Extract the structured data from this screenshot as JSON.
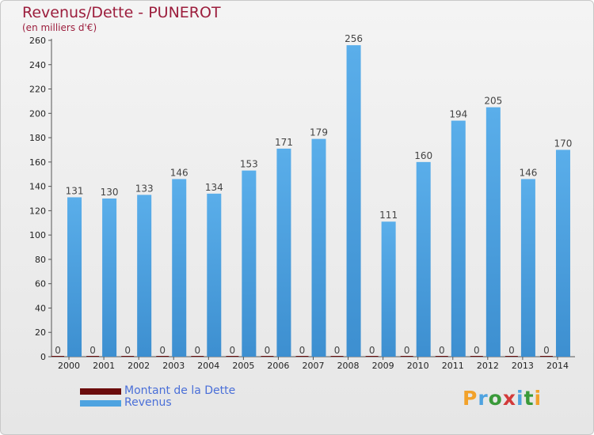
{
  "chart_data": {
    "type": "bar",
    "title": "Revenus/Dette - PUNEROT",
    "subtitle": "(en milliers d'€)",
    "categories": [
      "2000",
      "2001",
      "2002",
      "2003",
      "2004",
      "2005",
      "2006",
      "2007",
      "2008",
      "2009",
      "2010",
      "2011",
      "2012",
      "2013",
      "2014"
    ],
    "series": [
      {
        "name": "Montant de la Dette",
        "color": "#6b0c0c",
        "values": [
          0,
          0,
          0,
          0,
          0,
          0,
          0,
          0,
          0,
          0,
          0,
          0,
          0,
          0,
          0
        ]
      },
      {
        "name": "Revenus",
        "color": "#4ea3e0",
        "values": [
          131,
          130,
          133,
          146,
          134,
          153,
          171,
          179,
          256,
          111,
          160,
          194,
          205,
          146,
          170
        ]
      }
    ],
    "ylim": [
      0,
      260
    ],
    "yticks": [
      0,
      20,
      40,
      60,
      80,
      100,
      120,
      140,
      160,
      180,
      200,
      220,
      240,
      260
    ],
    "grid": false,
    "legend_position": "bottom-left"
  },
  "colors": {
    "title": "#9c1e3d",
    "axis_text": "#222222",
    "legend_text": "#4a6fd8"
  },
  "logo": {
    "text": "Proxiti",
    "letter_colors": [
      "#f2a22b",
      "#4ea3e0",
      "#3a9a3a",
      "#d23a3a",
      "#4ea3e0",
      "#3a9a3a",
      "#f2a22b"
    ]
  }
}
